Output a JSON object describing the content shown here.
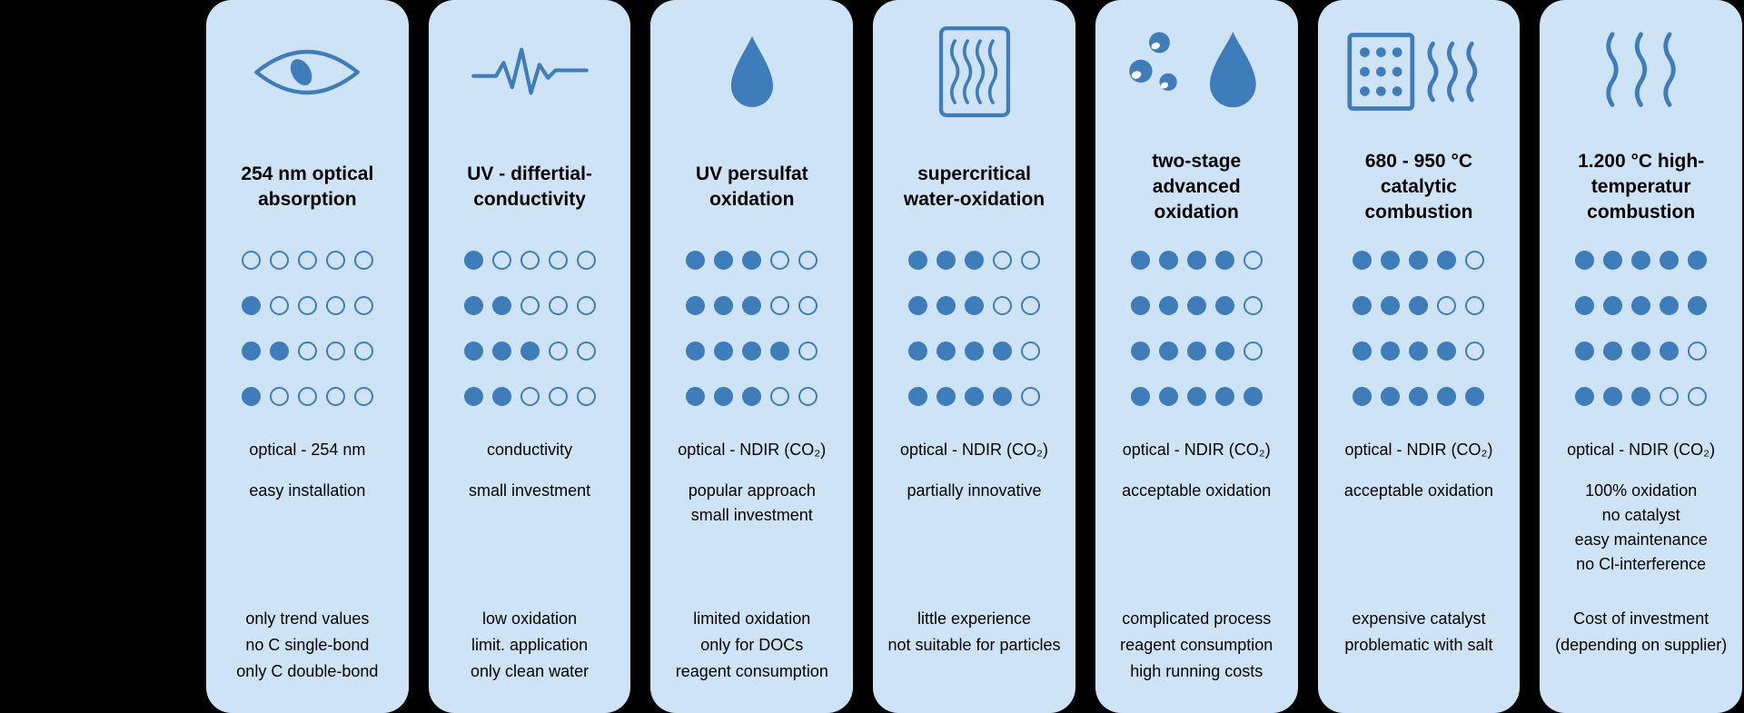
{
  "theme": {
    "background": "#000000",
    "card_bg": "#cfe3f7",
    "accent": "#3e7cba",
    "text": "#000000"
  },
  "board": {
    "rating_scale_max": 5,
    "rating_rows_per_card": 4
  },
  "cards": [
    {
      "icon": "eye-icon",
      "title": "254 nm optical\nabsorption",
      "ratings": [
        0,
        1,
        2,
        1
      ],
      "method": "optical - 254 nm",
      "pros": [
        "easy installation"
      ],
      "cons": [
        "only trend values",
        "no C single-bond",
        "only C double-bond"
      ]
    },
    {
      "icon": "waveform-icon",
      "title": "UV - differtial-\nconductivity",
      "ratings": [
        1,
        2,
        3,
        2
      ],
      "method": "conductivity",
      "pros": [
        "small investment"
      ],
      "cons": [
        "low oxidation",
        "limit. application",
        "only clean water"
      ]
    },
    {
      "icon": "water-drop-icon",
      "title": "UV persulfat\noxidation",
      "ratings": [
        3,
        3,
        4,
        3
      ],
      "method": "optical - NDIR (CO₂)",
      "pros": [
        "popular approach",
        "small investment"
      ],
      "cons": [
        "limited oxidation",
        "only for DOCs",
        "reagent consumption"
      ]
    },
    {
      "icon": "supercritical-chamber-icon",
      "title": "supercritical\nwater-oxidation",
      "ratings": [
        3,
        3,
        4,
        4
      ],
      "method": "optical - NDIR (CO₂)",
      "pros": [
        "partially innovative"
      ],
      "cons": [
        "little experience",
        "not suitable for particles"
      ]
    },
    {
      "icon": "bubbles-drop-icon",
      "title": "two-stage\nadvanced\noxidation",
      "ratings": [
        4,
        4,
        4,
        5
      ],
      "method": "optical - NDIR (CO₂)",
      "pros": [
        "acceptable oxidation"
      ],
      "cons": [
        "complicated process",
        "reagent consumption",
        "high running costs"
      ]
    },
    {
      "icon": "catalyst-combustion-icon",
      "title": "680 - 950 °C\ncatalytic\ncombustion",
      "ratings": [
        4,
        3,
        4,
        5
      ],
      "method": "optical - NDIR (CO₂)",
      "pros": [
        "acceptable oxidation"
      ],
      "cons": [
        "expensive catalyst",
        "problematic with salt"
      ]
    },
    {
      "icon": "heat-waves-icon",
      "title": "1.200 °C high-\ntemperatur\ncombustion",
      "ratings": [
        5,
        5,
        4,
        3
      ],
      "method": "optical - NDIR (CO₂)",
      "pros": [
        "100% oxidation",
        "no catalyst",
        "easy maintenance",
        "no Cl-interference"
      ],
      "cons": [
        "Cost of investment",
        "(depending on supplier)"
      ]
    }
  ]
}
